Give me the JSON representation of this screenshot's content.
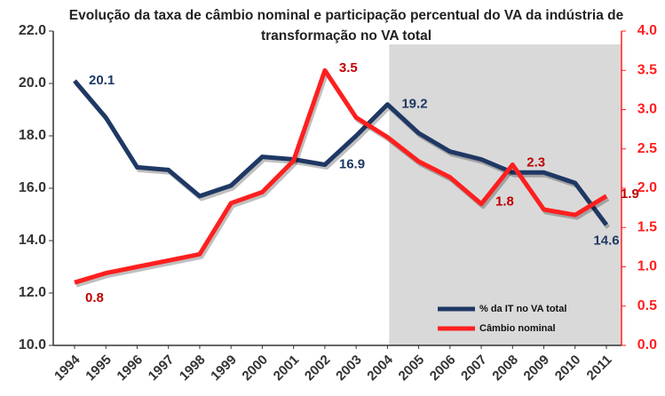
{
  "chart_data": {
    "type": "line",
    "title": "Evolução da taxa de câmbio nominal e participação percentual do VA da indústria de transformação no VA total",
    "categories": [
      "1994",
      "1995",
      "1996",
      "1997",
      "1998",
      "1999",
      "2000",
      "2001",
      "2002",
      "2003",
      "2004",
      "2005",
      "2006",
      "2007",
      "2008",
      "2009",
      "2010",
      "2011"
    ],
    "series": [
      {
        "name": "% da IT no VA total",
        "color": "#1f3864",
        "values": [
          20.1,
          18.7,
          16.8,
          16.7,
          15.7,
          16.1,
          17.2,
          17.1,
          16.9,
          18.0,
          19.2,
          18.1,
          17.4,
          17.1,
          16.6,
          16.6,
          16.2,
          14.6
        ],
        "value_labels": [
          "20.1",
          null,
          null,
          null,
          null,
          null,
          null,
          null,
          "16.9",
          null,
          "19.2",
          null,
          null,
          null,
          null,
          null,
          null,
          "14.6"
        ]
      },
      {
        "name": "Câmbio nominal",
        "color": "#ff1f1f",
        "axis": "y2",
        "values": [
          0.8,
          0.92,
          1.0,
          1.08,
          1.16,
          1.81,
          1.95,
          2.35,
          3.5,
          2.9,
          2.65,
          2.34,
          2.14,
          1.8,
          2.3,
          1.73,
          1.66,
          1.9
        ],
        "value_labels": [
          "0.8",
          null,
          null,
          null,
          null,
          null,
          null,
          null,
          "3.5",
          null,
          null,
          null,
          null,
          "1.8",
          "2.3",
          null,
          null,
          "1.9"
        ]
      }
    ],
    "ylim": [
      10,
      22
    ],
    "yticks": [
      {
        "value": 10,
        "label": "10.0"
      },
      {
        "value": 12,
        "label": "12.0"
      },
      {
        "value": 14,
        "label": "14.0"
      },
      {
        "value": 16,
        "label": "16.0"
      },
      {
        "value": 18,
        "label": "18.0"
      },
      {
        "value": 20,
        "label": "20.0"
      },
      {
        "value": 22,
        "label": "22.0"
      }
    ],
    "y2lim": [
      0,
      4
    ],
    "y2ticks": [
      {
        "value": 0,
        "label": "0.0"
      },
      {
        "value": 0.5,
        "label": "0.5"
      },
      {
        "value": 1,
        "label": "1.0"
      },
      {
        "value": 1.5,
        "label": "1.5"
      },
      {
        "value": 2,
        "label": "2.0"
      },
      {
        "value": 2.5,
        "label": "2.5"
      },
      {
        "value": 3,
        "label": "3.0"
      },
      {
        "value": 3.5,
        "label": "3.5"
      },
      {
        "value": 4,
        "label": "4.0"
      }
    ],
    "y2_color": "#ff1f1f",
    "highlight_from": "2004",
    "legend": "lower right"
  }
}
